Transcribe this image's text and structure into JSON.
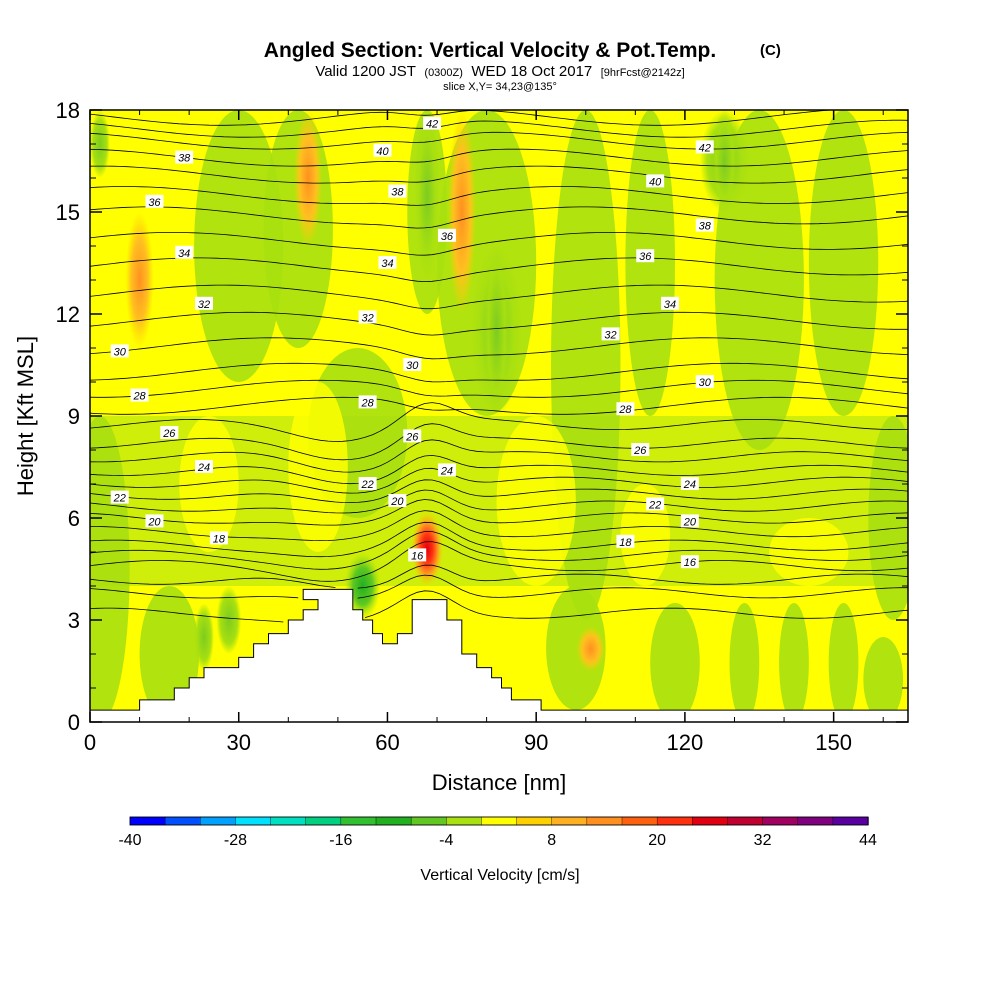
{
  "chart_data": {
    "type": "heatmap",
    "title": "Angled Section: Vertical Velocity & Pot.Temp.",
    "title_unit": "(C)",
    "subtitle_parts": [
      "Valid 1200 JST",
      "(0300Z)",
      "WED 18 Oct 2017",
      "[9hrFcst@2142z]"
    ],
    "slice_label": "slice X,Y= 34,23@135°",
    "xlabel": "Distance [nm]",
    "ylabel": "Height [Kft MSL]",
    "xlim": [
      0,
      165
    ],
    "ylim": [
      0,
      18
    ],
    "x_ticks": [
      "0",
      "30",
      "60",
      "90",
      "120",
      "150"
    ],
    "y_ticks": [
      "0",
      "3",
      "6",
      "9",
      "12",
      "15",
      "18"
    ],
    "colorbar": {
      "title": "Vertical Velocity [cm/s]",
      "labels": [
        "-40",
        "-28",
        "-16",
        "-4",
        "8",
        "20",
        "32",
        "44"
      ],
      "colors": [
        "#0000ff",
        "#0050ff",
        "#00a0ff",
        "#00e0ff",
        "#00e0c0",
        "#00d080",
        "#30c030",
        "#20b020",
        "#60c820",
        "#a8e010",
        "#ffff00",
        "#ffd000",
        "#ffb020",
        "#ff9020",
        "#ff6010",
        "#ff3010",
        "#e00010",
        "#c00030",
        "#a00060",
        "#800080",
        "#5a00a0"
      ]
    },
    "terrain_kft": [
      {
        "x": 0,
        "h": 0.35
      },
      {
        "x": 10,
        "h": 0.35
      },
      {
        "x": 10,
        "h": 0.65
      },
      {
        "x": 17,
        "h": 0.65
      },
      {
        "x": 17,
        "h": 1.0
      },
      {
        "x": 20,
        "h": 1.0
      },
      {
        "x": 20,
        "h": 1.3
      },
      {
        "x": 23,
        "h": 1.3
      },
      {
        "x": 23,
        "h": 1.6
      },
      {
        "x": 30,
        "h": 1.6
      },
      {
        "x": 30,
        "h": 1.9
      },
      {
        "x": 33,
        "h": 1.9
      },
      {
        "x": 33,
        "h": 2.3
      },
      {
        "x": 36,
        "h": 2.3
      },
      {
        "x": 36,
        "h": 2.6
      },
      {
        "x": 40,
        "h": 2.6
      },
      {
        "x": 40,
        "h": 3.0
      },
      {
        "x": 43,
        "h": 3.0
      },
      {
        "x": 43,
        "h": 3.3
      },
      {
        "x": 46,
        "h": 3.3
      },
      {
        "x": 46,
        "h": 3.6
      },
      {
        "x": 43,
        "h": 3.6
      },
      {
        "x": 43,
        "h": 3.9
      },
      {
        "x": 53,
        "h": 3.9
      },
      {
        "x": 53,
        "h": 3.6
      },
      {
        "x": 53,
        "h": 3.3
      },
      {
        "x": 55,
        "h": 3.3
      },
      {
        "x": 55,
        "h": 3.0
      },
      {
        "x": 57,
        "h": 3.0
      },
      {
        "x": 57,
        "h": 2.6
      },
      {
        "x": 59,
        "h": 2.6
      },
      {
        "x": 59,
        "h": 2.3
      },
      {
        "x": 62,
        "h": 2.3
      },
      {
        "x": 62,
        "h": 2.6
      },
      {
        "x": 65,
        "h": 2.6
      },
      {
        "x": 65,
        "h": 3.6
      },
      {
        "x": 72,
        "h": 3.6
      },
      {
        "x": 72,
        "h": 3.0
      },
      {
        "x": 75,
        "h": 3.0
      },
      {
        "x": 75,
        "h": 2.0
      },
      {
        "x": 78,
        "h": 2.0
      },
      {
        "x": 78,
        "h": 1.6
      },
      {
        "x": 81,
        "h": 1.6
      },
      {
        "x": 81,
        "h": 1.3
      },
      {
        "x": 83,
        "h": 1.3
      },
      {
        "x": 83,
        "h": 1.0
      },
      {
        "x": 85,
        "h": 1.0
      },
      {
        "x": 85,
        "h": 0.65
      },
      {
        "x": 91,
        "h": 0.65
      },
      {
        "x": 91,
        "h": 0.35
      },
      {
        "x": 165,
        "h": 0.35
      }
    ],
    "velocity_features": [
      {
        "kind": "updraft",
        "x": 68,
        "y_range": [
          4.0,
          6.2
        ],
        "value": 32
      },
      {
        "kind": "updraft",
        "x": 44,
        "y_range": [
          14,
          18
        ],
        "value": 12
      },
      {
        "kind": "updraft",
        "x": 75,
        "y_range": [
          12,
          18
        ],
        "value": 14
      },
      {
        "kind": "updraft",
        "x": 10,
        "y_range": [
          11,
          15
        ],
        "value": 10
      },
      {
        "kind": "updraft",
        "x": 101,
        "y_range": [
          1.5,
          2.8
        ],
        "value": 14
      },
      {
        "kind": "downdraft",
        "x": 55,
        "y_range": [
          3.0,
          5.0
        ],
        "value": -14
      },
      {
        "kind": "downdraft",
        "x": 68,
        "y_range": [
          13,
          18
        ],
        "value": -6
      },
      {
        "kind": "downdraft",
        "x": 82,
        "y_range": [
          9,
          14
        ],
        "value": -6
      },
      {
        "kind": "downdraft",
        "x": 128,
        "y_range": [
          15,
          18
        ],
        "value": -6
      }
    ],
    "contours": [
      {
        "label": "16",
        "h": 4.6,
        "label_positions": [
          [
            66,
            4.9
          ],
          [
            121,
            4.7
          ]
        ]
      },
      {
        "label": "18",
        "h": 5.2,
        "label_positions": [
          [
            26,
            5.4
          ],
          [
            108,
            5.3
          ]
        ]
      },
      {
        "label": "20",
        "h": 6.0,
        "label_positions": [
          [
            13,
            5.9
          ],
          [
            62,
            6.5
          ],
          [
            121,
            5.9
          ]
        ]
      },
      {
        "label": "22",
        "h": 6.7,
        "label_positions": [
          [
            6,
            6.6
          ],
          [
            56,
            7.0
          ],
          [
            114,
            6.4
          ]
        ]
      },
      {
        "label": "24",
        "h": 7.4,
        "label_positions": [
          [
            23,
            7.5
          ],
          [
            72,
            7.4
          ],
          [
            121,
            7.0
          ]
        ]
      },
      {
        "label": "26",
        "h": 8.2,
        "label_positions": [
          [
            16,
            8.5
          ],
          [
            65,
            8.4
          ],
          [
            111,
            8.0
          ]
        ]
      },
      {
        "label": "28",
        "h": 9.3,
        "label_positions": [
          [
            10,
            9.6
          ],
          [
            56,
            9.4
          ],
          [
            108,
            9.2
          ]
        ]
      },
      {
        "label": "30",
        "h": 10.3,
        "label_positions": [
          [
            6,
            10.9
          ],
          [
            65,
            10.5
          ],
          [
            124,
            10.0
          ]
        ]
      },
      {
        "label": "32",
        "h": 11.8,
        "label_positions": [
          [
            23,
            12.3
          ],
          [
            56,
            11.9
          ],
          [
            105,
            11.4
          ]
        ]
      },
      {
        "label": "34",
        "h": 13.4,
        "label_positions": [
          [
            19,
            13.8
          ],
          [
            60,
            13.5
          ],
          [
            117,
            12.3
          ]
        ]
      },
      {
        "label": "36",
        "h": 14.9,
        "label_positions": [
          [
            13,
            15.3
          ],
          [
            72,
            14.3
          ],
          [
            112,
            13.7
          ]
        ]
      },
      {
        "label": "38",
        "h": 16.1,
        "label_positions": [
          [
            19,
            16.6
          ],
          [
            62,
            15.6
          ],
          [
            124,
            14.6
          ]
        ]
      },
      {
        "label": "40",
        "h": 17.1,
        "label_positions": [
          [
            59,
            16.8
          ],
          [
            114,
            15.9
          ]
        ]
      },
      {
        "label": "42",
        "h": 17.8,
        "label_positions": [
          [
            69,
            17.6
          ],
          [
            124,
            16.9
          ]
        ]
      }
    ]
  }
}
